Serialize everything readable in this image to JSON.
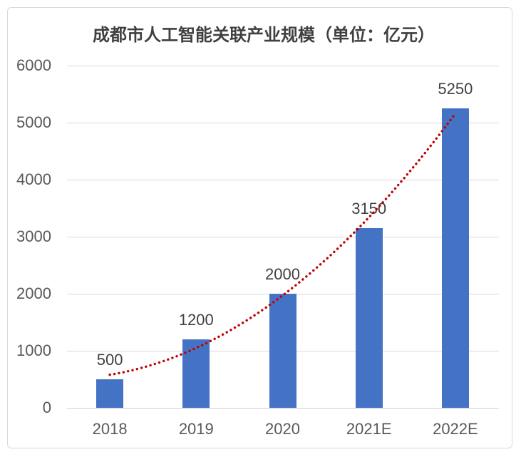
{
  "page": {
    "background": "#ffffff",
    "border_color": "#d9d9d9"
  },
  "chart_data": {
    "type": "bar",
    "title": "成都市人工智能关联产业规模（单位：亿元）",
    "categories": [
      "2018",
      "2019",
      "2020",
      "2021E",
      "2022E"
    ],
    "values": [
      500,
      1200,
      2000,
      3150,
      5250
    ],
    "data_labels": [
      "500",
      "1200",
      "2000",
      "3150",
      "5250"
    ],
    "xlabel": "",
    "ylabel": "",
    "ylim": [
      0,
      6000
    ],
    "yticks": [
      0,
      1000,
      2000,
      3000,
      4000,
      5000,
      6000
    ],
    "grid": true,
    "legend_position": "none",
    "bar_color": "#4472c4",
    "trendline": {
      "type": "polynomial",
      "order": 2,
      "coefficients_a_bx_cx2": [
        560,
        -205,
        225
      ],
      "color": "#c00000",
      "style": "dotted"
    },
    "colors": {
      "title": "#404040",
      "tick_label": "#595959",
      "data_label": "#404040",
      "gridline": "#d9d9d9",
      "axis_line": "#cfcfcf"
    }
  }
}
